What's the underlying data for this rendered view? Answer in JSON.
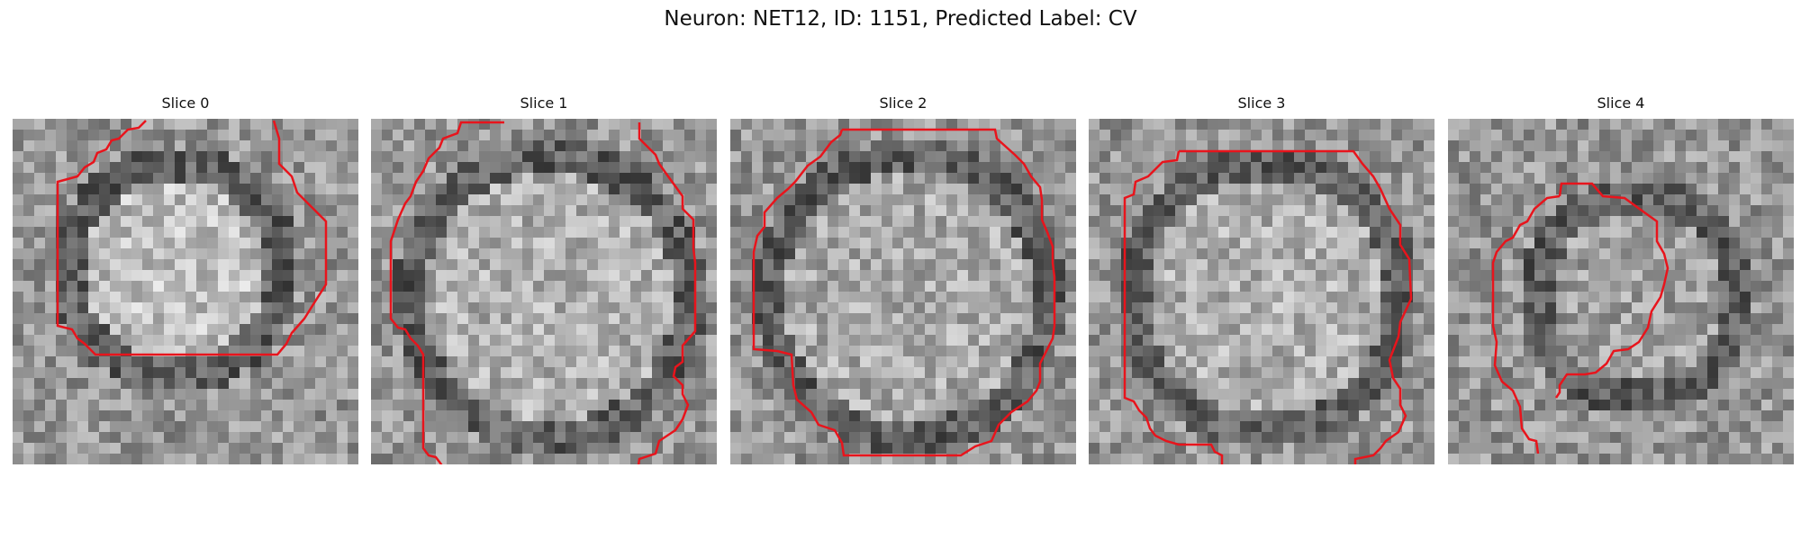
{
  "figure": {
    "title": "Neuron: NET12, ID: 1151, Predicted Label: CV"
  },
  "panels": [
    {
      "title": "Slice 0"
    },
    {
      "title": "Slice 1"
    },
    {
      "title": "Slice 2"
    },
    {
      "title": "Slice 3"
    },
    {
      "title": "Slice 4"
    }
  ],
  "colors": {
    "contour": "#e8141c"
  }
}
